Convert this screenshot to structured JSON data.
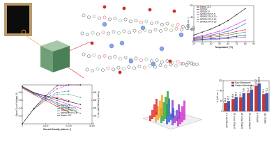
{
  "chart_data": [
    {
      "type": "line",
      "xlabel": "Temperature (°C)",
      "ylabel": "σ (mS cm⁻¹)",
      "x": [
        20,
        30,
        40,
        50,
        60,
        70,
        80
      ],
      "xlim": [
        20,
        90
      ],
      "xticks": [
        20,
        30,
        40,
        50,
        60,
        70,
        80,
        90
      ],
      "ylim": [
        0,
        120
      ],
      "yticks": [
        0,
        40,
        80,
        120
      ],
      "series": [
        {
          "name": "Nafion 212",
          "color": "#111111",
          "values": [
            22,
            32,
            42,
            55,
            70,
            90,
            110
          ]
        },
        {
          "name": "SPPEK",
          "color": "#e0242a",
          "values": [
            10,
            14,
            18,
            23,
            28,
            34,
            40
          ]
        },
        {
          "name": "SPEEK-P",
          "color": "#2a5bd7",
          "values": [
            12,
            17,
            22,
            28,
            35,
            45,
            60
          ]
        },
        {
          "name": "SPPEKTPI-P-5",
          "color": "#d22ad0",
          "values": [
            14,
            20,
            27,
            35,
            45,
            58,
            72
          ]
        },
        {
          "name": "SPPEKTPI-P-10",
          "color": "#2aa23a",
          "values": [
            8,
            11,
            14,
            18,
            22,
            27,
            32
          ]
        },
        {
          "name": "SPPEKTPI-P-15",
          "color": "#1b2a8c",
          "values": [
            6,
            8,
            10,
            12,
            15,
            18,
            22
          ]
        },
        {
          "name": "SPPEKTPI-P-20",
          "color": "#8a3ec9",
          "values": [
            4,
            5,
            7,
            9,
            11,
            13,
            16
          ]
        }
      ]
    },
    {
      "type": "line",
      "xlabel": "Current Density (mA cm⁻²)",
      "ylabel": "Open Circuit Voltage (V)",
      "y2label": "Power Density (mW cm⁻²)",
      "x": [
        0,
        500,
        1000,
        1500,
        2000,
        2500
      ],
      "xlim": [
        0,
        3000
      ],
      "xticks": [
        0,
        {
          "value": 1000,
          "label": "1×10³"
        },
        {
          "value": 2000,
          "label": "2×10³"
        },
        {
          "value": 3000,
          "label": "3×10³"
        }
      ],
      "ylim": [
        0,
        1
      ],
      "yticks": [
        0.2,
        0.4,
        0.6,
        0.8
      ],
      "y2lim": [
        0,
        500
      ],
      "y2ticks": [
        0,
        100,
        200,
        300,
        400
      ],
      "series": [
        {
          "name": "SPPEK-P",
          "color": "#e0242a",
          "values": [
            0.92,
            0.75,
            0.6,
            0.45,
            0.3,
            null
          ]
        },
        {
          "name": "SPPEKTPI-P-5",
          "color": "#2a5bd7",
          "values": [
            0.94,
            0.78,
            0.66,
            0.54,
            0.42,
            null
          ]
        },
        {
          "name": "SPPEKTPI-P-10",
          "color": "#2aa23a",
          "values": [
            0.93,
            0.77,
            0.64,
            0.5,
            0.38,
            0.27
          ]
        },
        {
          "name": "SPPEKTPI-P-15",
          "color": "#d22ad0",
          "values": [
            0.95,
            0.79,
            0.7,
            0.6,
            0.5,
            0.4
          ]
        },
        {
          "name": "Nafion 212",
          "color": "#111111",
          "values": [
            0.96,
            0.8,
            0.72,
            0.65,
            0.57,
            0.5
          ]
        },
        {
          "color": "#e0242a",
          "axis": "y2",
          "values": [
            0,
            190,
            300,
            340,
            300,
            null
          ]
        },
        {
          "color": "#2a5bd7",
          "axis": "y2",
          "values": [
            0,
            195,
            330,
            405,
            420,
            null
          ]
        },
        {
          "color": "#2aa23a",
          "axis": "y2",
          "values": [
            0,
            190,
            320,
            375,
            380,
            340
          ]
        },
        {
          "color": "#d22ad0",
          "axis": "y2",
          "values": [
            0,
            198,
            350,
            450,
            500,
            500
          ]
        },
        {
          "color": "#111111",
          "axis": "y2",
          "values": [
            0,
            200,
            360,
            490,
            500,
            500
          ]
        }
      ]
    },
    {
      "type": "bar",
      "ylabel": "σ (mS cm⁻¹)",
      "categories": [
        "SPPEKTPI-P-5",
        "SPPEKTPI-P-10",
        "SPPEKTPI-P-15",
        "SPPEKTPI-P-20",
        "SPPEK-P",
        "Nafion 212"
      ],
      "ylim": [
        0,
        120
      ],
      "yticks": [
        0,
        40,
        80,
        120
      ],
      "series": [
        {
          "name": "Raw Membrane",
          "color": "#c8362f",
          "values": [
            32.4,
            48.6,
            55.1,
            72.3,
            101.2,
            67.5
          ]
        },
        {
          "name": "Treated Membrane",
          "color": "#3b58b8",
          "values": [
            40.2,
            56.3,
            70.8,
            85.4,
            109.8,
            71.2
          ]
        }
      ]
    }
  ]
}
